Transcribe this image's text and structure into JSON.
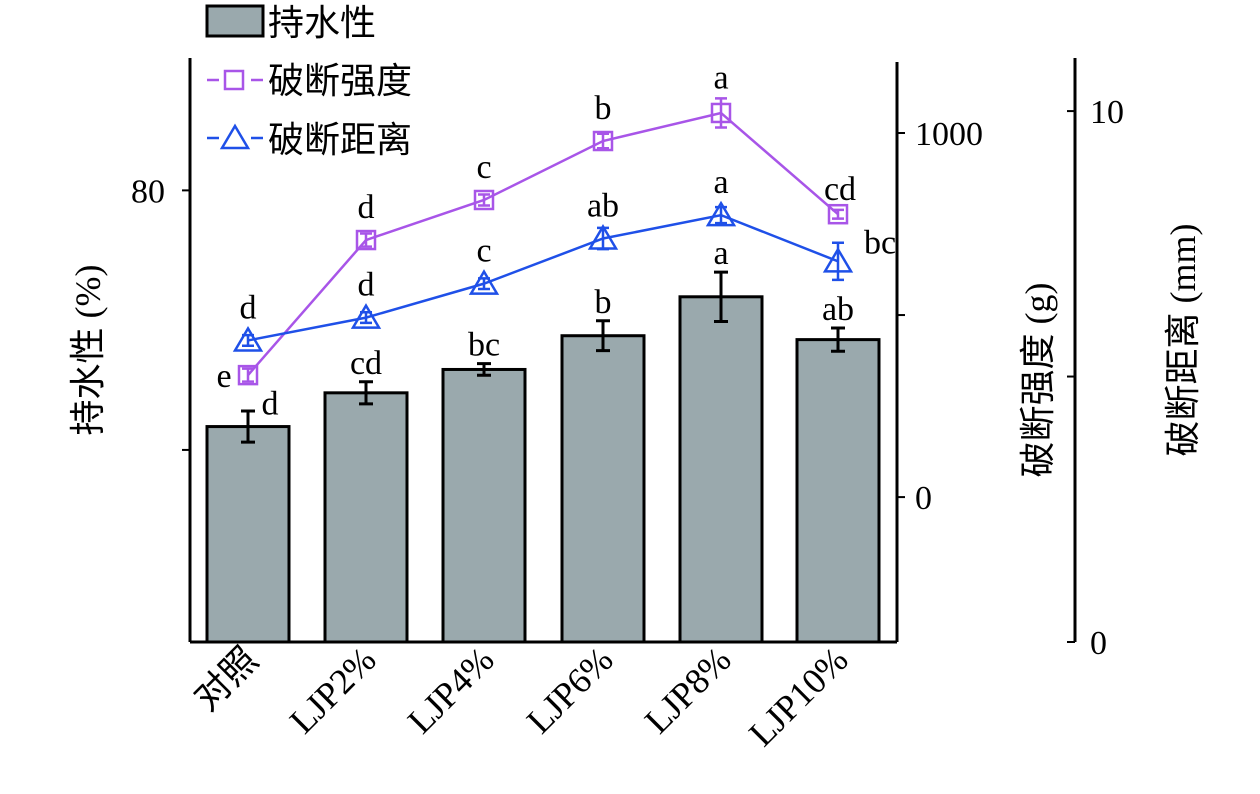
{
  "chart_data": {
    "type": "bar",
    "categories": [
      "对照",
      "LJP2%",
      "LJP4%",
      "LJP6%",
      "LJP8%",
      "LJP10%"
    ],
    "colors": {
      "bar": "#9aa9ad",
      "strength": "#a855e8",
      "distance": "#1f50e8",
      "axis": "#000000"
    },
    "legend": {
      "placement": "top-left",
      "items": [
        "持水性",
        "破断强度",
        "破断距离"
      ]
    },
    "axes": {
      "left": {
        "label": "持水性 (%)",
        "range": [
          45.2,
          90.2
        ],
        "ticks": [
          60,
          80
        ],
        "tick_labels": [
          "",
          "80"
        ]
      },
      "middle": {
        "label": "破断强度 (g)",
        "range": [
          -398,
          1206
        ],
        "ticks": [
          0,
          500,
          1000
        ],
        "tick_labels": [
          "0",
          "",
          "1000"
        ]
      },
      "right": {
        "label": "破断距离 (mm)",
        "range": [
          0,
          11
        ],
        "ticks": [
          0,
          5,
          10
        ],
        "tick_labels": [
          "0",
          "",
          "10"
        ]
      }
    },
    "series": [
      {
        "name": "持水性",
        "type": "bar",
        "axis": "left",
        "values": [
          61.8,
          64.4,
          66.2,
          68.8,
          71.8,
          68.5
        ],
        "errors": [
          1.2,
          0.85,
          0.45,
          1.15,
          1.9,
          0.9
        ],
        "labels": [
          "d",
          "cd",
          "bc",
          "b",
          "a",
          "ab"
        ]
      },
      {
        "name": "破断强度",
        "type": "line",
        "axis": "middle",
        "marker": "square",
        "values": [
          335,
          706,
          816,
          978,
          1055,
          777
        ],
        "errors": [
          18,
          18,
          15,
          20,
          40,
          12
        ],
        "labels": [
          "e",
          "d",
          "c",
          "b",
          "a",
          "cd"
        ]
      },
      {
        "name": "破断距离",
        "type": "line",
        "axis": "right",
        "marker": "triangle",
        "values": [
          5.68,
          6.11,
          6.75,
          7.6,
          8.04,
          7.17
        ],
        "errors": [
          0.1,
          0.1,
          0.1,
          0.2,
          0.15,
          0.35
        ],
        "labels": [
          "d",
          "d",
          "c",
          "ab",
          "a",
          "bc"
        ]
      }
    ]
  }
}
